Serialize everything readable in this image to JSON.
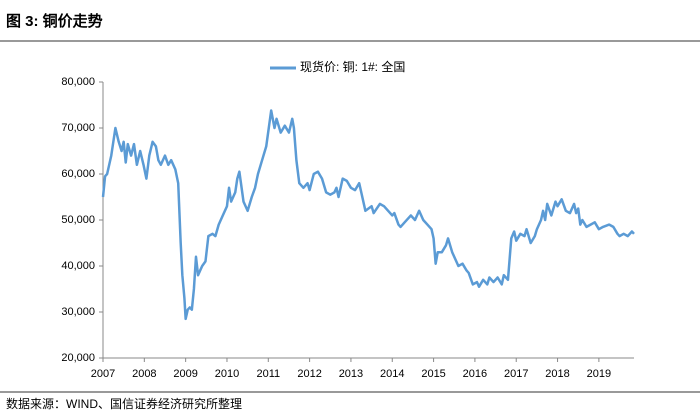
{
  "chart_data": {
    "type": "line",
    "title": "图 3:  铜价走势",
    "source": "数据来源：WIND、国信证券经济研究所整理",
    "x": [
      2007.0,
      2007.05,
      2007.1,
      2007.2,
      2007.3,
      2007.38,
      2007.45,
      2007.5,
      2007.55,
      2007.6,
      2007.68,
      2007.75,
      2007.82,
      2007.9,
      2007.98,
      2008.05,
      2008.12,
      2008.2,
      2008.28,
      2008.34,
      2008.4,
      2008.5,
      2008.58,
      2008.65,
      2008.75,
      2008.82,
      2008.88,
      2008.92,
      2008.97,
      2009.0,
      2009.05,
      2009.1,
      2009.15,
      2009.2,
      2009.25,
      2009.3,
      2009.4,
      2009.48,
      2009.55,
      2009.65,
      2009.72,
      2009.8,
      2009.9,
      2010.0,
      2010.05,
      2010.1,
      2010.2,
      2010.25,
      2010.3,
      2010.4,
      2010.5,
      2010.6,
      2010.68,
      2010.75,
      2010.85,
      2010.95,
      2011.07,
      2011.15,
      2011.2,
      2011.3,
      2011.4,
      2011.5,
      2011.58,
      2011.62,
      2011.68,
      2011.75,
      2011.85,
      2011.95,
      2012.0,
      2012.1,
      2012.2,
      2012.3,
      2012.4,
      2012.5,
      2012.6,
      2012.65,
      2012.7,
      2012.8,
      2012.9,
      2013.0,
      2013.1,
      2013.2,
      2013.25,
      2013.35,
      2013.5,
      2013.55,
      2013.7,
      2013.8,
      2013.9,
      2014.0,
      2014.05,
      2014.15,
      2014.2,
      2014.3,
      2014.45,
      2014.55,
      2014.65,
      2014.75,
      2014.85,
      2014.95,
      2015.0,
      2015.05,
      2015.1,
      2015.2,
      2015.3,
      2015.35,
      2015.45,
      2015.55,
      2015.6,
      2015.7,
      2015.8,
      2015.85,
      2015.95,
      2016.05,
      2016.1,
      2016.2,
      2016.3,
      2016.35,
      2016.45,
      2016.55,
      2016.65,
      2016.7,
      2016.8,
      2016.88,
      2016.95,
      2017.0,
      2017.1,
      2017.2,
      2017.25,
      2017.35,
      2017.45,
      2017.5,
      2017.6,
      2017.65,
      2017.7,
      2017.75,
      2017.85,
      2017.95,
      2018.0,
      2018.1,
      2018.2,
      2018.3,
      2018.4,
      2018.45,
      2018.5,
      2018.55,
      2018.6,
      2018.7,
      2018.8,
      2018.9,
      2019.0,
      2019.1,
      2019.25,
      2019.35,
      2019.45,
      2019.5,
      2019.6,
      2019.7,
      2019.8,
      2019.85
    ],
    "series": [
      {
        "name": "现货价: 铜: 1#: 全国",
        "color": "#5b9bd5",
        "values": [
          55000,
          59500,
          60000,
          64000,
          70000,
          67000,
          65000,
          67000,
          62500,
          66500,
          64000,
          66500,
          62000,
          65000,
          62000,
          59000,
          64000,
          67000,
          66000,
          63000,
          62000,
          64000,
          62000,
          63000,
          61000,
          58000,
          45000,
          38000,
          33000,
          28500,
          30500,
          31000,
          30500,
          35000,
          42000,
          38000,
          40000,
          41000,
          46500,
          47000,
          46500,
          49000,
          51000,
          53000,
          57000,
          54000,
          56000,
          59000,
          60500,
          54000,
          52000,
          55000,
          57000,
          60000,
          63000,
          66000,
          73800,
          70000,
          72000,
          69000,
          70500,
          69000,
          72000,
          70000,
          63000,
          58000,
          57000,
          58000,
          56500,
          60000,
          60500,
          59000,
          56000,
          55500,
          56000,
          57000,
          55000,
          59000,
          58500,
          57000,
          56500,
          58000,
          56000,
          52000,
          53000,
          51500,
          53500,
          53000,
          52000,
          51000,
          51500,
          49000,
          48500,
          49500,
          51000,
          50000,
          52000,
          50000,
          49000,
          48000,
          46000,
          40500,
          43000,
          43000,
          44500,
          46000,
          43000,
          41000,
          40000,
          40500,
          39000,
          38500,
          36000,
          36500,
          35500,
          37000,
          36000,
          37500,
          36500,
          37500,
          36000,
          38000,
          37000,
          46000,
          47500,
          45500,
          47000,
          46500,
          48000,
          45000,
          46500,
          48000,
          50000,
          52000,
          50000,
          53500,
          51000,
          54000,
          53000,
          54500,
          52000,
          51500,
          53500,
          51500,
          52500,
          49000,
          50000,
          48500,
          49000,
          49500,
          48000,
          48500,
          49000,
          48500,
          47000,
          46500,
          47000,
          46500,
          47500,
          47000
        ]
      }
    ],
    "xlim": [
      2007,
      2019.85
    ],
    "xticks": [
      2007,
      2008,
      2009,
      2010,
      2011,
      2012,
      2013,
      2014,
      2015,
      2016,
      2017,
      2018,
      2019
    ],
    "ylim": [
      20000,
      80000
    ],
    "yticks": [
      {
        "value": 20000,
        "label": "20,000"
      },
      {
        "value": 30000,
        "label": "30,000"
      },
      {
        "value": 40000,
        "label": "40,000"
      },
      {
        "value": 50000,
        "label": "50,000"
      },
      {
        "value": 60000,
        "label": "60,000"
      },
      {
        "value": 70000,
        "label": "70,000"
      },
      {
        "value": 80000,
        "label": "80,000"
      }
    ],
    "grid": false,
    "legend": "top"
  }
}
